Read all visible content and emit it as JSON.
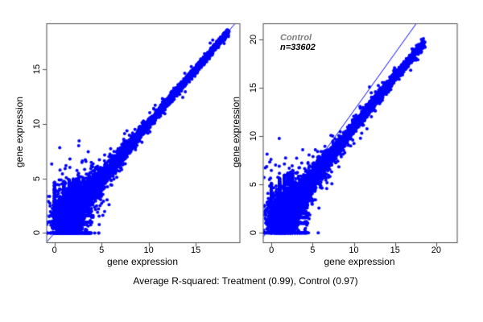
{
  "figure": {
    "background": "#ffffff",
    "caption": "Average R-squared: Treatment (0.99), Control (0.97)",
    "r_squared": {
      "treatment": 0.99,
      "control": 0.97
    }
  },
  "style": {
    "point_color": "#0000ff",
    "line_color": "#0000ff",
    "frame_color": "#4d4d4d",
    "annotation_gray": "#7d7d7d",
    "text_color": "#000000"
  },
  "chart_data": [
    {
      "type": "scatter",
      "name": "treatment",
      "xlabel": "gene expression",
      "ylabel": "gene expression",
      "xticks": [
        0,
        5,
        10,
        15
      ],
      "yticks": [
        0,
        5,
        10,
        15
      ],
      "xlim": [
        -0.87,
        19.65
      ],
      "ylim": [
        -0.85,
        19.2
      ],
      "annotation": null,
      "fit_line": {
        "slope": 1.0,
        "intercept": 0.0
      },
      "outliers": [
        [
          9.3,
          10.1
        ],
        [
          17.9,
          18.15
        ],
        [
          3.9,
          0.0
        ],
        [
          0.0,
          4.6
        ]
      ],
      "generator": {
        "seed": 1234,
        "cloud_n": 7200,
        "t_min": 1.0,
        "t_max": 18.45,
        "t_shape": 2.05,
        "sd_base": 0.12,
        "sd_amp": 1.5,
        "sd_tau": 3.4,
        "slope": 1.0,
        "quad": 0.0,
        "tail_frac": 0.09,
        "tail_mult": 2.3,
        "lattice_n": 780,
        "lattice_amax": 15,
        "lattice_bmax": 26,
        "lattice_pow": 1.25,
        "vstripe_n": 380,
        "vtop_base": 4.5,
        "vtop_slope": 0.25,
        "hstripe_n": 260,
        "htop_base": 3.95,
        "htop_slope": 0.1
      }
    },
    {
      "type": "scatter",
      "name": "control",
      "xlabel": "gene expression",
      "ylabel": "gene expression",
      "xticks": [
        0,
        5,
        10,
        15,
        20
      ],
      "yticks": [
        0,
        5,
        10,
        15,
        20
      ],
      "xlim": [
        -1.04,
        22.5
      ],
      "ylim": [
        -0.98,
        21.69
      ],
      "annotation": {
        "line1": "Control",
        "line2": "n=33602"
      },
      "n_points_label": 33602,
      "fit_line": {
        "slope": 1.19,
        "intercept": 0.75
      },
      "outliers": [
        [
          11.9,
          15.1
        ],
        [
          18.45,
          20.1
        ],
        [
          17.6,
          19.4
        ],
        [
          4.15,
          0.0
        ],
        [
          8.9,
          8.3
        ],
        [
          3.8,
          8.6
        ]
      ],
      "generator": {
        "seed": 777,
        "cloud_n": 7600,
        "t_min": 1.0,
        "t_max": 18.5,
        "t_shape": 2.0,
        "sd_base": 0.18,
        "sd_amp": 1.8,
        "sd_tau": 3.2,
        "slope": 1.128,
        "quad": 0.0035,
        "tail_frac": 0.1,
        "tail_mult": 2.3,
        "lattice_n": 980,
        "lattice_amax": 20,
        "lattice_bmax": 36,
        "lattice_pow": 1.25,
        "vstripe_n": 640,
        "vtop_base": 5.2,
        "vtop_slope": 0.5,
        "hstripe_n": 300,
        "htop_base": 4.3,
        "htop_slope": 0.1
      }
    }
  ]
}
